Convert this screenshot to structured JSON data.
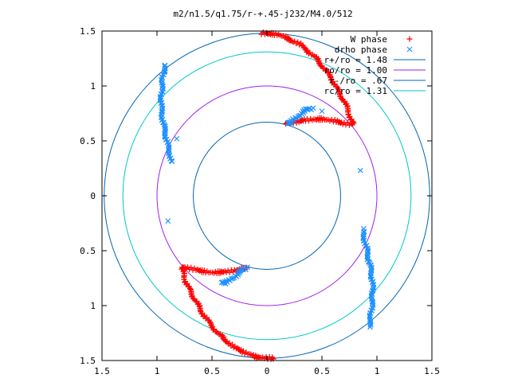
{
  "chart_data": {
    "type": "scatter",
    "title": "m2/n1.5/q1.75/r-+.45-j232/M4.0/512",
    "xlabel": "",
    "ylabel": "",
    "xlim": [
      -1.5,
      1.5
    ],
    "ylim": [
      -1.5,
      1.5
    ],
    "x_ticks": [
      -1.5,
      -1,
      -0.5,
      0,
      0.5,
      1,
      1.5
    ],
    "y_ticks": [
      -1.5,
      -1,
      -0.5,
      0,
      0.5,
      1,
      1.5
    ],
    "x_tick_labels": [
      "1.5",
      "1",
      "0.5",
      "0",
      "0.5",
      "1",
      "1.5"
    ],
    "y_tick_labels": [
      "1.5",
      "1",
      "0.5",
      "0",
      "0.5",
      "1",
      "1.5"
    ],
    "grid": false,
    "legend_position": "top-right",
    "circles": [
      {
        "label": "r+/ro = 1.48",
        "radius": 1.48,
        "color": "#0066b3"
      },
      {
        "label": "ro/ro = 1.00",
        "radius": 1.0,
        "color": "#a020f0"
      },
      {
        "label": "r-/ro = .67",
        "radius": 0.67,
        "color": "#0066b3"
      },
      {
        "label": "rc/ro = 1.31",
        "radius": 1.31,
        "color": "#00c8c8"
      }
    ],
    "phase_series": [
      {
        "label": "W phase",
        "marker": "+",
        "color": "#ff0000",
        "arms": [
          {
            "x": [
              -0.05,
              0.1,
              0.3,
              0.45,
              0.58,
              0.68,
              0.74,
              0.76,
              0.78,
              0.76,
              0.7,
              0.62,
              0.5,
              0.35,
              0.18
            ],
            "y": [
              1.48,
              1.47,
              1.38,
              1.25,
              1.08,
              0.9,
              0.78,
              0.7,
              0.66,
              0.65,
              0.66,
              0.68,
              0.7,
              0.69,
              0.66
            ]
          },
          {
            "x": [
              0.05,
              -0.1,
              -0.3,
              -0.45,
              -0.58,
              -0.68,
              -0.74,
              -0.76,
              -0.78,
              -0.76,
              -0.7,
              -0.62,
              -0.5,
              -0.35,
              -0.18
            ],
            "y": [
              -1.48,
              -1.47,
              -1.38,
              -1.25,
              -1.08,
              -0.9,
              -0.78,
              -0.7,
              -0.66,
              -0.65,
              -0.66,
              -0.68,
              -0.7,
              -0.69,
              -0.66
            ]
          }
        ]
      },
      {
        "label": "drho phase",
        "marker": "x",
        "color": "#1e90ff",
        "arms": [
          {
            "x": [
              -0.93,
              -0.95,
              -0.96,
              -0.96,
              -0.94,
              -0.92,
              -0.9,
              -0.88,
              -0.87
            ],
            "y": [
              1.19,
              1.05,
              0.92,
              0.78,
              0.65,
              0.55,
              0.45,
              0.37,
              0.31
            ]
          },
          {
            "x": [
              0.93,
              0.95,
              0.96,
              0.96,
              0.94,
              0.92,
              0.9,
              0.88,
              0.87
            ],
            "y": [
              -1.19,
              -1.05,
              -0.92,
              -0.78,
              -0.65,
              -0.55,
              -0.45,
              -0.37,
              -0.31
            ]
          },
          {
            "x": [
              0.18,
              0.22,
              0.27,
              0.32,
              0.37,
              0.42
            ],
            "y": [
              0.66,
              0.67,
              0.71,
              0.76,
              0.79,
              0.79
            ]
          },
          {
            "x": [
              -0.18,
              -0.22,
              -0.27,
              -0.32,
              -0.37,
              -0.42
            ],
            "y": [
              -0.66,
              -0.67,
              -0.71,
              -0.76,
              -0.79,
              -0.79
            ]
          }
        ],
        "outliers": [
          {
            "x": 0.85,
            "y": 0.23
          },
          {
            "x": -0.9,
            "y": -0.23
          },
          {
            "x": 0.5,
            "y": 0.77
          },
          {
            "x": -0.82,
            "y": 0.52
          }
        ]
      }
    ]
  }
}
